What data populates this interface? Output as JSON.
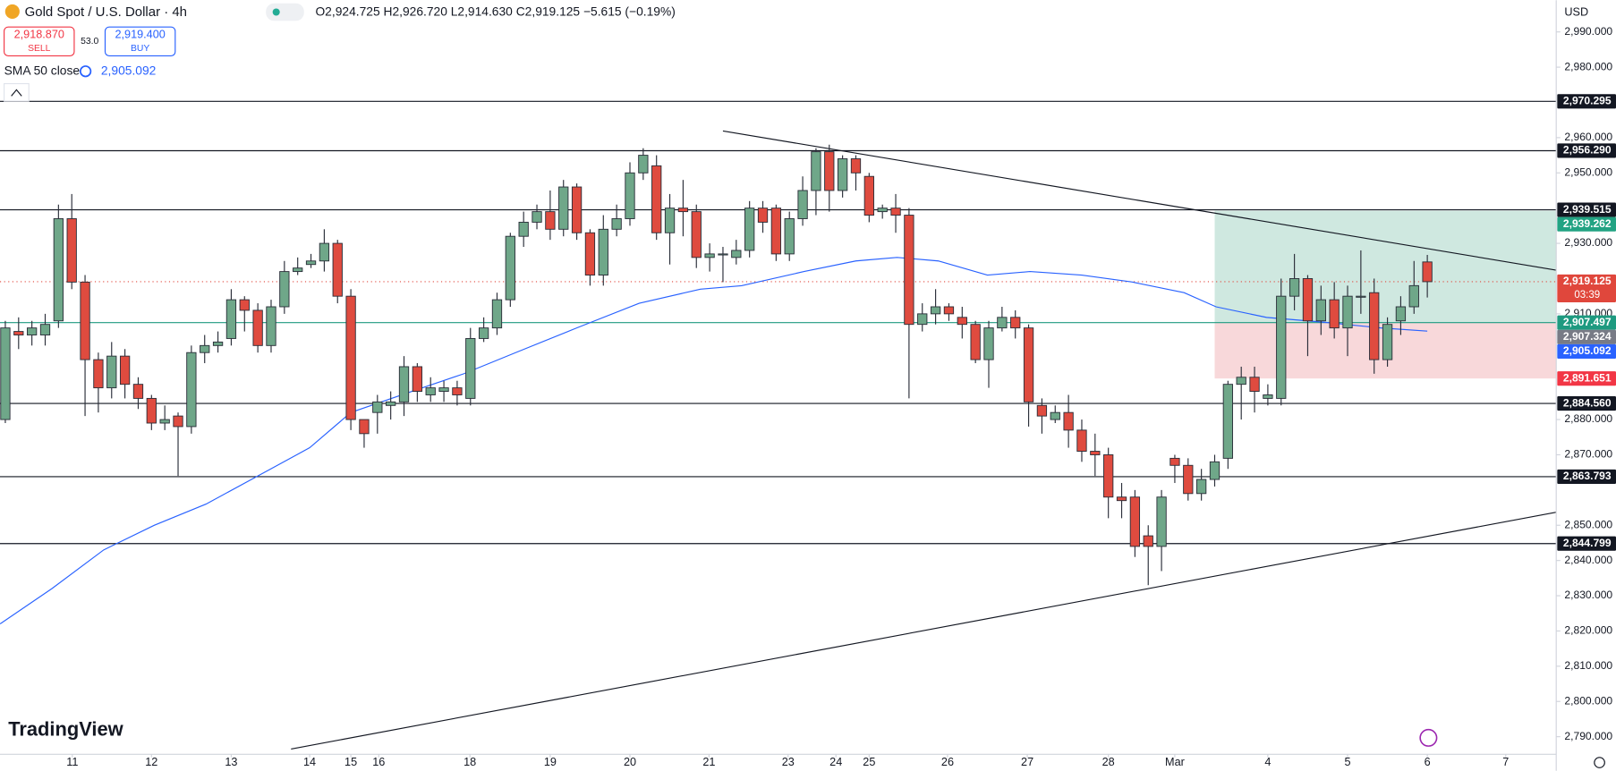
{
  "header": {
    "title": "Gold Spot / U.S. Dollar · 4h",
    "ohlc": "O2,924.725 H2,926.720 L2,914.630 C2,919.125 −5.615 (−0.19%)",
    "sell_price": "2,918.870",
    "sell": "SELL",
    "spread": "53.0",
    "buy_price": "2,919.400",
    "buy": "BUY",
    "indicator": "SMA 50 close",
    "indicator_value": "2,905.092",
    "currency": "USD",
    "logo": "TradingView"
  },
  "chart_data": {
    "type": "candlestick",
    "up_color": "#6fa789",
    "down_color": "#df4b3f",
    "grid": false,
    "xlim": [
      -0.4,
      116.7
    ],
    "ylim": [
      2785,
      2999
    ],
    "xticks": [
      {
        "value": 5.04,
        "label": "11"
      },
      {
        "value": 11.0,
        "label": "12"
      },
      {
        "value": 17.0,
        "label": "13"
      },
      {
        "value": 22.9,
        "label": "14"
      },
      {
        "value": 26.0,
        "label": "15"
      },
      {
        "value": 28.1,
        "label": "16"
      },
      {
        "value": 34.96,
        "label": "18"
      },
      {
        "value": 41.0,
        "label": "19"
      },
      {
        "value": 47.0,
        "label": "20"
      },
      {
        "value": 52.95,
        "label": "21"
      },
      {
        "value": 58.9,
        "label": "23"
      },
      {
        "value": 62.5,
        "label": "24"
      },
      {
        "value": 65.0,
        "label": "25"
      },
      {
        "value": 70.9,
        "label": "26"
      },
      {
        "value": 76.9,
        "label": "27"
      },
      {
        "value": 83.0,
        "label": "28"
      },
      {
        "value": 88.0,
        "label": "Mar"
      },
      {
        "value": 95.0,
        "label": "4"
      },
      {
        "value": 101.0,
        "label": "5"
      },
      {
        "value": 107.0,
        "label": "6"
      },
      {
        "value": 112.9,
        "label": "7"
      }
    ],
    "yticks": [
      {
        "value": 2990,
        "label": "2,990.000"
      },
      {
        "value": 2980,
        "label": "2,980.000"
      },
      {
        "value": 2960,
        "label": "2,960.000"
      },
      {
        "value": 2950,
        "label": "2,950.000"
      },
      {
        "value": 2930,
        "label": "2,930.000"
      },
      {
        "value": 2910,
        "label": "2,910.000"
      },
      {
        "value": 2880,
        "label": "2,880.000"
      },
      {
        "value": 2870,
        "label": "2,870.000"
      },
      {
        "value": 2850,
        "label": "2,850.000"
      },
      {
        "value": 2840,
        "label": "2,840.000"
      },
      {
        "value": 2830,
        "label": "2,830.000"
      },
      {
        "value": 2820,
        "label": "2,820.000"
      },
      {
        "value": 2810,
        "label": "2,810.000"
      },
      {
        "value": 2800,
        "label": "2,800.000"
      },
      {
        "value": 2790,
        "label": "2,790.000"
      }
    ],
    "x": [
      0,
      1,
      2,
      3,
      4,
      5,
      6,
      7,
      8,
      9,
      10,
      11,
      12,
      13,
      14,
      15,
      16,
      17,
      18,
      19,
      20,
      21,
      22,
      23,
      24,
      25,
      26,
      27,
      28,
      29,
      30,
      31,
      32,
      33,
      34,
      35,
      36,
      37,
      38,
      39,
      40,
      41,
      42,
      43,
      44,
      45,
      46,
      47,
      48,
      49,
      50,
      51,
      52,
      53,
      54,
      55,
      56,
      57,
      58,
      59,
      60,
      61,
      62,
      63,
      64,
      65,
      66,
      67,
      68,
      69,
      70,
      71,
      72,
      73,
      74,
      75,
      76,
      77,
      78,
      79,
      80,
      81,
      82,
      83,
      84,
      85,
      86,
      87,
      88,
      89,
      90,
      91,
      92,
      93,
      94,
      95,
      96,
      97,
      98,
      99,
      100,
      101,
      102,
      103,
      104,
      105,
      106,
      107
    ],
    "open": [
      2880,
      2905,
      2904,
      2904,
      2908,
      2937,
      2919,
      2897,
      2889,
      2898,
      2890,
      2886,
      2879,
      2881,
      2878,
      2899,
      2901,
      2903,
      2914,
      2911,
      2901,
      2912,
      2922,
      2924,
      2925,
      2930,
      2915,
      2880,
      2882,
      2884,
      2885,
      2895,
      2887,
      2888,
      2889,
      2886,
      2903,
      2906,
      2914,
      2932,
      2936,
      2939,
      2934,
      2946,
      2933,
      2921,
      2934,
      2937,
      2950,
      2952,
      2933,
      2940,
      2939,
      2926,
      2927,
      2926,
      2928,
      2940,
      2940,
      2927,
      2937,
      2945,
      2956,
      2945,
      2954,
      2949,
      2939,
      2940,
      2938,
      2907,
      2910,
      2912,
      2909,
      2907,
      2897,
      2906,
      2909,
      2906,
      2884,
      2880,
      2882,
      2877,
      2871,
      2870,
      2858,
      2858,
      2847,
      2844,
      2869,
      2867,
      2859,
      2863,
      2869,
      2890,
      2892,
      2886,
      2886,
      2915,
      2920,
      2908,
      2914,
      2906,
      2915,
      2916,
      2897,
      2908,
      2912,
      2924.725
    ],
    "high": [
      2908,
      2909,
      2908,
      2910,
      2941,
      2944,
      2921,
      2899,
      2902,
      2900,
      2892,
      2887,
      2884,
      2882,
      2901,
      2904,
      2905,
      2917,
      2915,
      2913,
      2914,
      2925,
      2926,
      2927,
      2934,
      2931,
      2917,
      2880,
      2887,
      2888,
      2898,
      2896,
      2892,
      2891,
      2891,
      2906,
      2909,
      2916,
      2933,
      2939,
      2941,
      2945,
      2948,
      2947,
      2934,
      2938,
      2941,
      2953,
      2957,
      2955,
      2944,
      2948,
      2941,
      2930,
      2929,
      2931,
      2942,
      2942,
      2941,
      2939,
      2949,
      2957,
      2958,
      2955,
      2955,
      2950,
      2941,
      2944,
      2940,
      2913,
      2917,
      2913,
      2912,
      2908,
      2908,
      2912,
      2911,
      2907,
      2886,
      2884,
      2887,
      2880,
      2876,
      2872,
      2862,
      2860,
      2850,
      2860,
      2870,
      2869,
      2866,
      2870,
      2891,
      2895,
      2895,
      2890,
      2920,
      2927,
      2921,
      2918,
      2919,
      2918,
      2928,
      2920,
      2909,
      2915,
      2925,
      2926.72
    ],
    "low": [
      2879,
      2900,
      2901,
      2901,
      2906,
      2917,
      2881,
      2882,
      2886,
      2886,
      2883,
      2877,
      2877,
      2864,
      2876,
      2896,
      2899,
      2901,
      2905,
      2899,
      2899,
      2910,
      2921,
      2923,
      2922,
      2913,
      2877,
      2872,
      2876,
      2880,
      2881,
      2885,
      2885,
      2885,
      2884,
      2884,
      2902,
      2904,
      2912,
      2929,
      2934,
      2931,
      2932,
      2931,
      2918,
      2918,
      2932,
      2935,
      2948,
      2931,
      2924,
      2932,
      2923,
      2922,
      2919,
      2924,
      2926,
      2933,
      2925,
      2925,
      2935,
      2938,
      2939,
      2943,
      2945,
      2936,
      2937,
      2933,
      2886,
      2905,
      2907,
      2908,
      2903,
      2896,
      2889,
      2905,
      2903,
      2878,
      2876,
      2879,
      2872,
      2868,
      2864,
      2852,
      2852,
      2841,
      2833,
      2837,
      2862,
      2857,
      2857,
      2861,
      2866,
      2880,
      2882,
      2884,
      2884,
      2911,
      2898,
      2904,
      2903,
      2898,
      2910,
      2893,
      2895,
      2904,
      2910,
      2914.63
    ],
    "close": [
      2906,
      2904,
      2906,
      2907,
      2937,
      2919,
      2897,
      2889,
      2898,
      2890,
      2886,
      2879,
      2880,
      2878,
      2899,
      2901,
      2902,
      2914,
      2911,
      2901,
      2912,
      2922,
      2923,
      2925,
      2930,
      2915,
      2880,
      2876,
      2885,
      2885,
      2895,
      2888,
      2889,
      2889,
      2887,
      2903,
      2906,
      2914,
      2932,
      2936,
      2939,
      2934,
      2946,
      2933,
      2921,
      2934,
      2937,
      2950,
      2955,
      2933,
      2940,
      2939,
      2926,
      2927,
      2927,
      2928,
      2940,
      2936,
      2927,
      2937,
      2945,
      2956,
      2945,
      2954,
      2950,
      2938,
      2940,
      2938,
      2907,
      2910,
      2912,
      2910,
      2907,
      2897,
      2906,
      2909,
      2906,
      2885,
      2881,
      2882,
      2877,
      2871,
      2870,
      2858,
      2857,
      2844,
      2844,
      2858,
      2867,
      2859,
      2863,
      2868,
      2890,
      2892,
      2888,
      2887,
      2915,
      2920,
      2908,
      2914,
      2906,
      2915,
      2915,
      2897,
      2907,
      2912,
      2918,
      2919.125
    ],
    "sma": {
      "color": "#2962ff",
      "x": [
        -0.39,
        3.5,
        7.4,
        11.2,
        15.1,
        19.0,
        22.9,
        26.0,
        30.6,
        34.5,
        38.4,
        43.0,
        47.7,
        52.3,
        55.4,
        60.1,
        64.0,
        67.1,
        70.2,
        73.9,
        77.1,
        81.0,
        84.8,
        88.7,
        91.1,
        94.9,
        99.6,
        103.5,
        107
      ],
      "values": [
        2822,
        2832,
        2843,
        2850,
        2856,
        2864,
        2872,
        2882,
        2888,
        2893,
        2899,
        2906,
        2913,
        2917,
        2918,
        2922,
        2925,
        2926,
        2925,
        2921,
        2922,
        2921,
        2919,
        2916,
        2912,
        2909,
        2907.5,
        2906,
        2905.092
      ]
    },
    "trendlines": [
      {
        "color": "#131722",
        "x": [
          54.0,
          116.7
        ],
        "values": [
          2961.9,
          2922.4
        ]
      },
      {
        "color": "#131722",
        "x": [
          21.5,
          116.7
        ],
        "values": [
          2786.5,
          2853.7
        ]
      }
    ],
    "position": {
      "start": 91.0,
      "top": 2939.262,
      "entry": 2907.497,
      "bottom": 2891.651,
      "profit_color": "#cfe8e0",
      "loss_color": "#f8d8da"
    },
    "levels": [
      {
        "value": 2970.295,
        "label": "2,970.295",
        "color": "#131722",
        "line": "solid"
      },
      {
        "value": 2956.29,
        "label": "2,956.290",
        "color": "#131722",
        "line": "solid"
      },
      {
        "value": 2939.515,
        "label": "2,939.515",
        "color": "#131722",
        "line": "solid"
      },
      {
        "value": 2939.262,
        "label": "2,939.262",
        "color": "#22a383",
        "line": "none"
      },
      {
        "value": 2919.125,
        "label": "2,919.125",
        "sublabel": "03:39",
        "color": "#e0473c",
        "line": "dotted"
      },
      {
        "value": 2907.497,
        "label": "2,907.497",
        "color": "#1e9a80",
        "line": "solid"
      },
      {
        "value": 2907.324,
        "label": "2,907.324",
        "color": "#787b86",
        "line": "none"
      },
      {
        "value": 2905.092,
        "label": "2,905.092",
        "color": "#2962ff",
        "line": "none"
      },
      {
        "value": 2891.651,
        "label": "2,891.651",
        "color": "#f23645",
        "line": "none"
      },
      {
        "value": 2884.56,
        "label": "2,884.560",
        "color": "#131722",
        "line": "solid"
      },
      {
        "value": 2863.793,
        "label": "2,863.793",
        "color": "#131722",
        "line": "solid"
      },
      {
        "value": 2844.799,
        "label": "2,844.799",
        "color": "#131722",
        "line": "solid"
      }
    ]
  }
}
